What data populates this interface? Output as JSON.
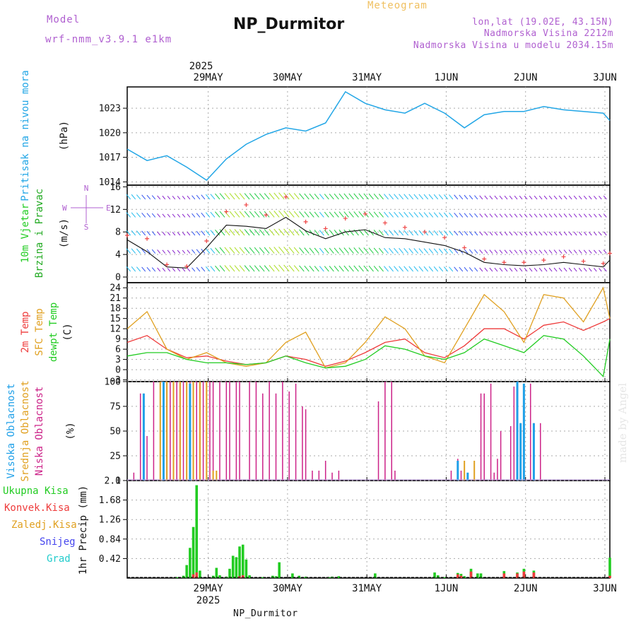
{
  "header": {
    "meteogram_label": "Meteogram",
    "station_title": "NP_Durmitor",
    "model_label": "Model",
    "model_name": "wrf-nmm_v3.9.1 e1km",
    "location": "lon,lat (19.02E, 43.15N)",
    "elevation": "Nadmorska Visina 2212m",
    "model_elevation": "Nadmorska Visina u modelu 2034.15m",
    "watermark": "made by Angel"
  },
  "footer": {
    "station": "NP_Durmitor"
  },
  "time_axis": {
    "year": "2025",
    "days": [
      "29MAY",
      "30MAY",
      "31MAY",
      "1JUN",
      "2JUN",
      "3JUN"
    ],
    "start_hours_before_first_day": 13,
    "total_hours": 146
  },
  "colors": {
    "pressure": "#22a6e6",
    "temp_2m": "#ee3b3b",
    "temp_sfc": "#e0a020",
    "dewpoint": "#22cc22",
    "cloud_high": "#1fa0e8",
    "cloud_mid": "#e0a020",
    "cloud_low": "#cc2288",
    "rain_total": "#22cc22",
    "rain_conv": "#ee3b3b",
    "snow": "#4444ee",
    "hail": "#22cccc",
    "wind_label": "#22cc22",
    "wind_label2": "#22aa22",
    "meta": "#b060d0"
  },
  "chart_data": [
    {
      "type": "line",
      "panel": "pressure",
      "ylabel": [
        "Pritisak na nivou mora",
        "(hPa)"
      ],
      "yticks": [
        1014,
        1017,
        1020,
        1023
      ],
      "ylim": [
        1013.6,
        1025.6
      ],
      "x": [
        0,
        6,
        12,
        18,
        24,
        30,
        36,
        42,
        48,
        54,
        60,
        66,
        72,
        78,
        84,
        90,
        96,
        102,
        108,
        114,
        120,
        126,
        132,
        138,
        144,
        146
      ],
      "series": [
        {
          "name": "Pritisak na nivou mora",
          "values": [
            1018.0,
            1016.6,
            1017.2,
            1015.8,
            1014.2,
            1016.8,
            1018.6,
            1019.8,
            1020.6,
            1020.2,
            1021.2,
            1025.0,
            1023.6,
            1022.8,
            1022.4,
            1023.6,
            1022.4,
            1020.6,
            1022.2,
            1022.6,
            1022.6,
            1023.2,
            1022.8,
            1022.6,
            1022.4,
            1021.5
          ]
        }
      ]
    },
    {
      "type": "line",
      "panel": "wind",
      "ylabel": [
        "10m Vjetar",
        "Brzina i Pravac",
        "(m/s)"
      ],
      "direction_legend": [
        "N",
        "W",
        "E",
        "S"
      ],
      "yticks": [
        0,
        4,
        8,
        12,
        16
      ],
      "ylim": [
        -1,
        16.3
      ],
      "x": [
        0,
        6,
        12,
        18,
        24,
        30,
        36,
        42,
        48,
        54,
        60,
        66,
        72,
        78,
        84,
        90,
        96,
        102,
        108,
        114,
        120,
        126,
        132,
        138,
        144,
        146
      ],
      "series": [
        {
          "name": "speed",
          "values": [
            6.6,
            4.5,
            1.8,
            1.6,
            5.2,
            9.2,
            9.0,
            8.6,
            10.6,
            8.2,
            6.8,
            8.0,
            8.4,
            7.0,
            6.8,
            6.2,
            5.6,
            4.4,
            2.6,
            2.2,
            2.0,
            2.2,
            2.6,
            2.2,
            1.8,
            3.0
          ]
        },
        {
          "name": "gust",
          "values": [
            7.4,
            6.8,
            2.2,
            1.9,
            6.4,
            11.6,
            12.8,
            11.0,
            14.2,
            9.8,
            8.6,
            10.4,
            11.2,
            9.6,
            8.8,
            8.0,
            7.0,
            5.2,
            3.2,
            2.6,
            2.6,
            3.0,
            3.6,
            2.8,
            2.4,
            4.2
          ]
        }
      ]
    },
    {
      "type": "line",
      "panel": "temperature",
      "ylabel": [
        "2m Temp",
        "SFC Temp",
        "dewpt Temp",
        "(C)"
      ],
      "yticks": [
        -3,
        0,
        3,
        6,
        9,
        12,
        15,
        18,
        21,
        24
      ],
      "ylim": [
        -3.5,
        25.5
      ],
      "x": [
        0,
        6,
        12,
        18,
        24,
        30,
        36,
        42,
        48,
        54,
        60,
        66,
        72,
        78,
        84,
        90,
        96,
        102,
        108,
        114,
        120,
        126,
        132,
        138,
        144,
        146
      ],
      "series": [
        {
          "name": "2m Temp",
          "values": [
            8,
            10,
            6,
            3.5,
            4,
            2.5,
            1.5,
            2,
            4,
            3,
            1,
            2.5,
            5,
            8,
            9,
            5,
            3.5,
            7,
            12,
            12,
            9,
            13,
            14,
            11.5,
            14,
            15
          ]
        },
        {
          "name": "SFC Temp",
          "values": [
            12,
            17,
            6,
            3,
            5,
            2,
            1,
            2,
            8,
            11,
            0.5,
            2,
            8,
            15.5,
            12,
            4,
            2,
            12,
            22,
            17,
            8,
            22,
            21,
            14,
            24,
            15
          ]
        },
        {
          "name": "dewpt Temp",
          "values": [
            4,
            5,
            5,
            3,
            2,
            2,
            1.5,
            2,
            4,
            2,
            0.5,
            1,
            3,
            7,
            6,
            4,
            3,
            5,
            9,
            7,
            5,
            10,
            9,
            4,
            -2,
            9
          ]
        }
      ]
    },
    {
      "type": "bar",
      "panel": "cloud",
      "ylabel": [
        "Visoka Oblacnost",
        "Srednja Oblacnost",
        "Niska Oblacnost",
        "(%)"
      ],
      "yticks": [
        0,
        25,
        50,
        75,
        100
      ],
      "ylim": [
        0,
        100
      ],
      "series": [
        {
          "name": "Niska Oblacnost",
          "x": [
            2,
            4,
            6,
            8,
            11,
            12,
            13,
            14,
            15,
            16,
            17,
            18,
            19,
            20,
            21,
            22,
            23,
            24,
            25,
            26,
            28,
            30,
            31,
            33,
            34,
            37,
            39,
            41,
            43,
            45,
            47,
            49,
            51,
            53,
            54,
            56,
            58,
            60,
            62,
            64,
            76,
            78,
            80,
            81,
            98,
            100,
            101,
            107,
            108,
            110,
            111,
            112,
            113,
            116,
            117,
            122,
            123,
            125
          ],
          "values": [
            8,
            88,
            45,
            100,
            100,
            100,
            100,
            100,
            100,
            100,
            100,
            100,
            100,
            100,
            100,
            100,
            100,
            100,
            100,
            100,
            100,
            100,
            100,
            100,
            100,
            100,
            100,
            88,
            100,
            88,
            100,
            90,
            98,
            75,
            72,
            10,
            10,
            20,
            8,
            10,
            80,
            100,
            100,
            10,
            10,
            22,
            10,
            88,
            88,
            98,
            8,
            22,
            50,
            55,
            95,
            98,
            58,
            58
          ]
        },
        {
          "name": "Srednja Oblacnost",
          "x": [
            10,
            12,
            14,
            16,
            18,
            20,
            22,
            24,
            26,
            27,
            102,
            105,
            118,
            119
          ],
          "values": [
            100,
            100,
            100,
            100,
            100,
            100,
            100,
            100,
            10,
            10,
            20,
            20,
            48,
            58
          ]
        },
        {
          "name": "Visoka Oblacnost",
          "x": [
            5,
            11,
            19,
            100,
            103,
            118,
            119,
            120,
            123
          ],
          "values": [
            88,
            100,
            98,
            20,
            8,
            100,
            58,
            98,
            58
          ]
        }
      ]
    },
    {
      "type": "bar",
      "panel": "precipitation",
      "ylabel": [
        "1hr Precip (mm)"
      ],
      "legend": [
        "Ukupna Kisa",
        "Konvek.Kisa",
        "Zaledj.Kisa",
        "Snijeg",
        "Grad"
      ],
      "yticks": [
        0.42,
        0.84,
        1.26,
        1.68,
        2.1
      ],
      "ylim": [
        0,
        2.1
      ],
      "series": [
        {
          "name": "Ukupna Kisa",
          "x": [
            15,
            17,
            18,
            19,
            20,
            21,
            22,
            26,
            27,
            28,
            30,
            31,
            32,
            33,
            34,
            35,
            36,
            37,
            41,
            44,
            45,
            46,
            50,
            52,
            54,
            61,
            62,
            64,
            75,
            93,
            94,
            96,
            100,
            101,
            102,
            104,
            106,
            107,
            114,
            118,
            120,
            123,
            146
          ],
          "values": [
            0.02,
            0.05,
            0.28,
            0.65,
            1.1,
            2.0,
            0.16,
            0.05,
            0.22,
            0.06,
            0.03,
            0.2,
            0.48,
            0.45,
            0.68,
            0.72,
            0.4,
            0.06,
            0.02,
            0.05,
            0.04,
            0.34,
            0.1,
            0.05,
            0.03,
            0.02,
            0.03,
            0.04,
            0.1,
            0.12,
            0.06,
            0.02,
            0.11,
            0.09,
            0.04,
            0.2,
            0.1,
            0.1,
            0.15,
            0.12,
            0.2,
            0.16,
            0.44
          ]
        },
        {
          "name": "Konvek.Kisa",
          "x": [
            20,
            21,
            34,
            35,
            100,
            101,
            104,
            114,
            118,
            120,
            123,
            146
          ],
          "values": [
            0.08,
            0.12,
            0.04,
            0.06,
            0.08,
            0.05,
            0.14,
            0.1,
            0.1,
            0.14,
            0.12,
            0.05
          ]
        }
      ]
    }
  ]
}
